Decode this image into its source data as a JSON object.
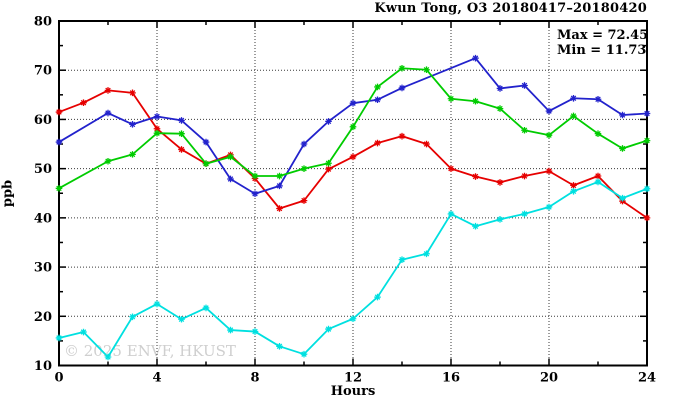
{
  "title": "Kwun Tong, O3 20180417–20180420",
  "annotation": {
    "max_label": "Max = 72.45",
    "min_label": "Min = 11.73"
  },
  "watermark": "© 2025 ENVF, HKUST",
  "chart_data": {
    "type": "line",
    "title": "Kwun Tong, O3 20180417–20180420",
    "xlabel": "Hours",
    "ylabel": "ppb",
    "xlim": [
      0,
      24
    ],
    "ylim": [
      10,
      80
    ],
    "grid": true,
    "legend_position": "none",
    "x_ticks_major": [
      0,
      4,
      8,
      12,
      16,
      20,
      24
    ],
    "x_ticks_minor": [
      2,
      6,
      10,
      14,
      18,
      22
    ],
    "y_ticks_major": [
      10,
      20,
      30,
      40,
      50,
      60,
      70,
      80
    ],
    "y_ticks_minor": [
      15,
      25,
      35,
      45,
      55,
      65,
      75
    ],
    "x": [
      0,
      1,
      2,
      3,
      4,
      5,
      6,
      7,
      8,
      9,
      10,
      11,
      12,
      13,
      14,
      15,
      16,
      17,
      18,
      19,
      20,
      21,
      22,
      23,
      24
    ],
    "series": [
      {
        "name": "series-red",
        "color": "#e60000",
        "values": [
          61.5,
          63.4,
          65.9,
          65.4,
          58.1,
          53.9,
          51.0,
          52.8,
          48.0,
          41.9,
          43.5,
          49.9,
          52.4,
          55.2,
          56.6,
          55.0,
          50.0,
          48.4,
          47.2,
          48.5,
          49.5,
          46.6,
          48.5,
          43.4,
          40.0
        ]
      },
      {
        "name": "series-blue",
        "color": "#2222cc",
        "values": [
          55.4,
          null,
          61.3,
          59.0,
          60.6,
          59.8,
          55.4,
          47.9,
          44.9,
          46.5,
          55.0,
          59.6,
          63.3,
          64.0,
          66.4,
          null,
          null,
          72.45,
          66.3,
          66.9,
          61.7,
          64.3,
          64.1,
          60.9,
          61.2
        ]
      },
      {
        "name": "series-green",
        "color": "#00cc00",
        "values": [
          46.0,
          null,
          51.5,
          52.9,
          57.2,
          57.1,
          51.0,
          52.4,
          48.5,
          48.5,
          50.0,
          51.1,
          58.5,
          66.6,
          70.4,
          70.1,
          64.2,
          63.7,
          62.2,
          57.8,
          56.8,
          60.7,
          57.1,
          54.1,
          55.7
        ]
      },
      {
        "name": "series-cyan",
        "color": "#00e0e0",
        "values": [
          15.6,
          16.8,
          11.73,
          19.9,
          22.5,
          19.4,
          21.7,
          17.2,
          16.9,
          13.9,
          12.3,
          17.4,
          19.5,
          23.9,
          31.5,
          32.7,
          40.8,
          38.3,
          39.7,
          40.8,
          42.2,
          45.4,
          47.3,
          44.0,
          45.9
        ]
      }
    ],
    "max": 72.45,
    "min": 11.73
  }
}
